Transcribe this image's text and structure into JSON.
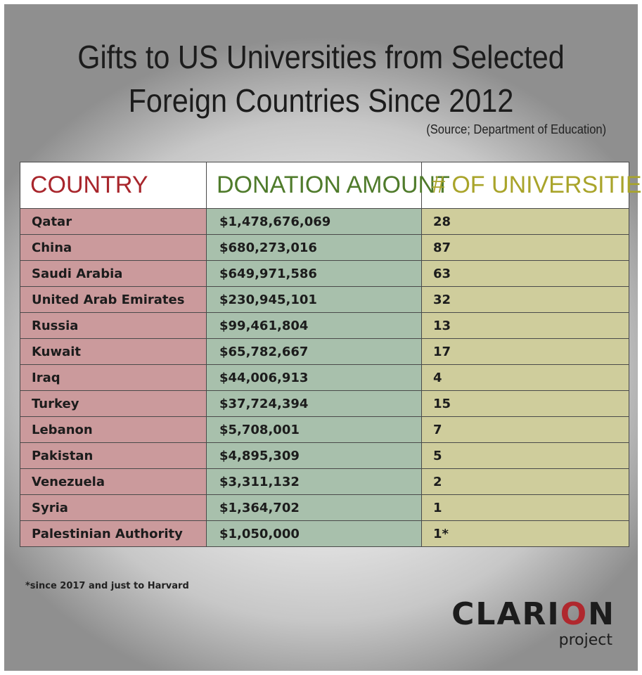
{
  "header": {
    "title_line1": "Gifts to US Universities from Selected",
    "title_line2": "Foreign Countries Since 2012",
    "source": "(Source; Department of Education)"
  },
  "table": {
    "columns": [
      "COUNTRY",
      "DONATION AMOUNT",
      "# OF UNIVERSITIES"
    ],
    "rows": [
      {
        "country": "Qatar",
        "amount": "$1,478,676,069",
        "universities": "28"
      },
      {
        "country": "China",
        "amount": "$680,273,016",
        "universities": "87"
      },
      {
        "country": "Saudi Arabia",
        "amount": "$649,971,586",
        "universities": "63"
      },
      {
        "country": "United Arab Emirates",
        "amount": "$230,945,101",
        "universities": "32"
      },
      {
        "country": "Russia",
        "amount": "$99,461,804",
        "universities": "13"
      },
      {
        "country": "Kuwait",
        "amount": "$65,782,667",
        "universities": "17"
      },
      {
        "country": "Iraq",
        "amount": "$44,006,913",
        "universities": "4"
      },
      {
        "country": "Turkey",
        "amount": "$37,724,394",
        "universities": "15"
      },
      {
        "country": "Lebanon",
        "amount": "$5,708,001",
        "universities": "7"
      },
      {
        "country": "Pakistan",
        "amount": "$4,895,309",
        "universities": "5"
      },
      {
        "country": "Venezuela",
        "amount": "$3,311,132",
        "universities": "2"
      },
      {
        "country": "Syria",
        "amount": "$1,364,702",
        "universities": "1"
      },
      {
        "country": "Palestinian Authority",
        "amount": "$1,050,000",
        "universities": "1*"
      }
    ]
  },
  "footnote": "*since 2017 and just to Harvard",
  "logo": {
    "text_before": "CLARI",
    "text_o": "O",
    "text_after": "N",
    "subtext": "project"
  },
  "colors": {
    "country_header": "#a8262c",
    "amount_header": "#4f7b2b",
    "universities_header": "#a9a42a",
    "country_cell": "#cb9a9c",
    "amount_cell": "#a8c0ac",
    "universities_cell": "#cfcd9c",
    "logo_accent": "#b0282e"
  }
}
